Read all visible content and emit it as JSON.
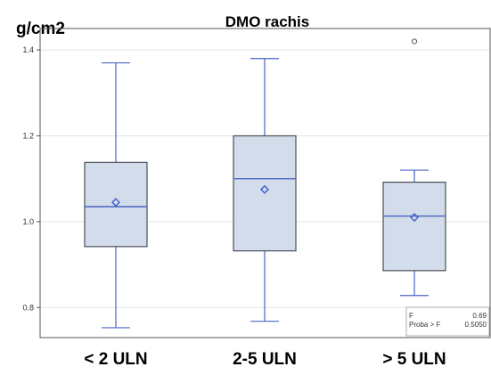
{
  "chart_data": {
    "type": "box",
    "title": "DMO rachis",
    "ylabel": "g/cm2",
    "xlabel": "",
    "ylim": [
      0.73,
      1.45
    ],
    "yticks": [
      0.8,
      1.0,
      1.2,
      1.4
    ],
    "ytick_labels": [
      "0.8",
      "1.0",
      "1.2",
      "1.4"
    ],
    "grid": true,
    "categories": [
      "< 2 ULN",
      "2-5 ULN",
      "> 5 ULN"
    ],
    "boxes": [
      {
        "category": "< 2 ULN",
        "min": 0.753,
        "q1": 0.942,
        "median": 1.035,
        "q3": 1.138,
        "max": 1.37,
        "mean": 1.045,
        "outliers": []
      },
      {
        "category": "2-5 ULN",
        "min": 0.768,
        "q1": 0.932,
        "median": 1.1,
        "q3": 1.2,
        "max": 1.38,
        "mean": 1.075,
        "outliers": []
      },
      {
        "category": "> 5 ULN",
        "min": 0.828,
        "q1": 0.886,
        "median": 1.013,
        "q3": 1.092,
        "max": 1.12,
        "mean": 1.01,
        "outliers": [
          1.42
        ]
      }
    ],
    "stats": {
      "rows": [
        {
          "label": "F",
          "value": "0.69"
        },
        {
          "label": "Proba > F",
          "value": "0.5050"
        }
      ]
    },
    "colors": {
      "box_fill": "#d3dcea",
      "box_stroke": "#4a4f58",
      "whisker": "#4a64c4",
      "mean_marker": "#3355cc",
      "grid": "#e4e4e4",
      "axis": "#555555"
    }
  }
}
